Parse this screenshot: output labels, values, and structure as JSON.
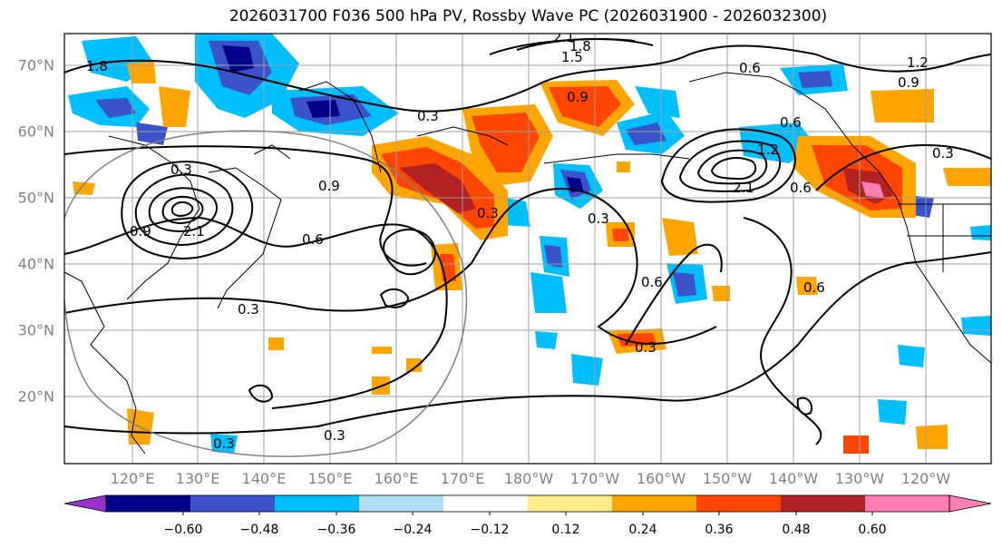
{
  "title": "2026031700 F036 500 hPa PV, Rossby Wave PC (2026031900 - 2026032300)",
  "map": {
    "lat_labels": [
      "70°N",
      "60°N",
      "50°N",
      "40°N",
      "30°N",
      "20°N"
    ],
    "lon_labels": [
      "120°E",
      "130°E",
      "140°E",
      "150°E",
      "160°E",
      "170°E",
      "180°W",
      "170°W",
      "160°W",
      "150°W",
      "140°W",
      "130°W",
      "120°W"
    ],
    "contour_labels": [
      "0.3",
      "0.6",
      "0.9",
      "1.2",
      "1.5",
      "1.8",
      "2.1"
    ],
    "colors": {
      "neg_strong": "#00008b",
      "neg_mid": "#3a52cc",
      "neg": "#00bfff",
      "neg_weak": "#aedff7",
      "pos_weak": "#ffec8b",
      "pos": "#ffa500",
      "pos_mid": "#ff4500",
      "pos_strong": "#b22222",
      "pos_max": "#ff7fb4",
      "neg_max": "#9932cc"
    }
  },
  "colorbar": {
    "ticks": [
      "−0.60",
      "−0.48",
      "−0.36",
      "−0.24",
      "−0.12",
      "0.12",
      "0.24",
      "0.36",
      "0.48",
      "0.60"
    ],
    "colors": [
      "#9932cc",
      "#00008b",
      "#3a52cc",
      "#00bfff",
      "#aedff7",
      "#ffffff",
      "#ffec8b",
      "#ffa500",
      "#ff4500",
      "#b22222",
      "#ff7fb4",
      "#ff7fb4"
    ]
  }
}
